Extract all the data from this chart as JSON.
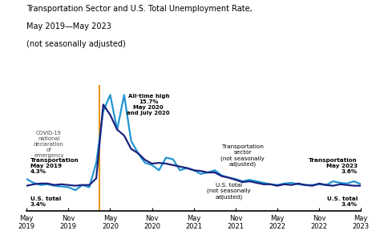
{
  "title_line1": "Transportation Sector and U.S. Total Unemployment Rate,",
  "title_line2": "May 2019—May 2023",
  "title_line3": "(not seasonally adjusted)",
  "bg_color": "#ffffff",
  "transport_color": "#2196d3",
  "ustotal_color": "#1a237e",
  "covid_line_color": "#e6900a",
  "transport": [
    4.3,
    3.8,
    3.5,
    3.6,
    3.4,
    3.3,
    3.2,
    2.8,
    3.5,
    3.2,
    6.5,
    13.5,
    15.7,
    11.0,
    15.7,
    9.5,
    7.8,
    6.5,
    6.2,
    5.5,
    7.2,
    7.0,
    5.5,
    5.8,
    5.5,
    5.0,
    5.2,
    5.5,
    4.8,
    4.5,
    4.3,
    4.0,
    4.2,
    4.0,
    3.8,
    3.6,
    3.5,
    3.7,
    3.8,
    3.6,
    3.5,
    3.5,
    3.6,
    3.5,
    4.0,
    3.8,
    3.7,
    4.0,
    3.6
  ],
  "ustotal": [
    3.4,
    3.6,
    3.7,
    3.7,
    3.5,
    3.6,
    3.5,
    3.4,
    3.5,
    3.5,
    4.4,
    14.4,
    13.0,
    11.0,
    10.2,
    8.4,
    7.8,
    6.9,
    6.4,
    6.5,
    6.4,
    6.2,
    6.0,
    5.8,
    5.5,
    5.4,
    5.2,
    5.2,
    4.7,
    4.5,
    4.2,
    3.9,
    4.0,
    3.8,
    3.6,
    3.6,
    3.4,
    3.6,
    3.5,
    3.7,
    3.5,
    3.4,
    3.7,
    3.5,
    3.4,
    3.6,
    3.5,
    3.4,
    3.4
  ],
  "covid_x": 10.5,
  "xlim": [
    0,
    48
  ],
  "ylim": [
    0,
    17
  ],
  "xtick_positions": [
    0,
    6,
    12,
    18,
    24,
    30,
    36,
    42,
    48
  ],
  "xtick_labels": [
    "May\n2019",
    "Nov\n2019",
    "May\n2020",
    "Nov\n2020",
    "May\n2021",
    "Nov\n2021",
    "May\n2022",
    "Nov\n2022",
    "May\n2023"
  ]
}
